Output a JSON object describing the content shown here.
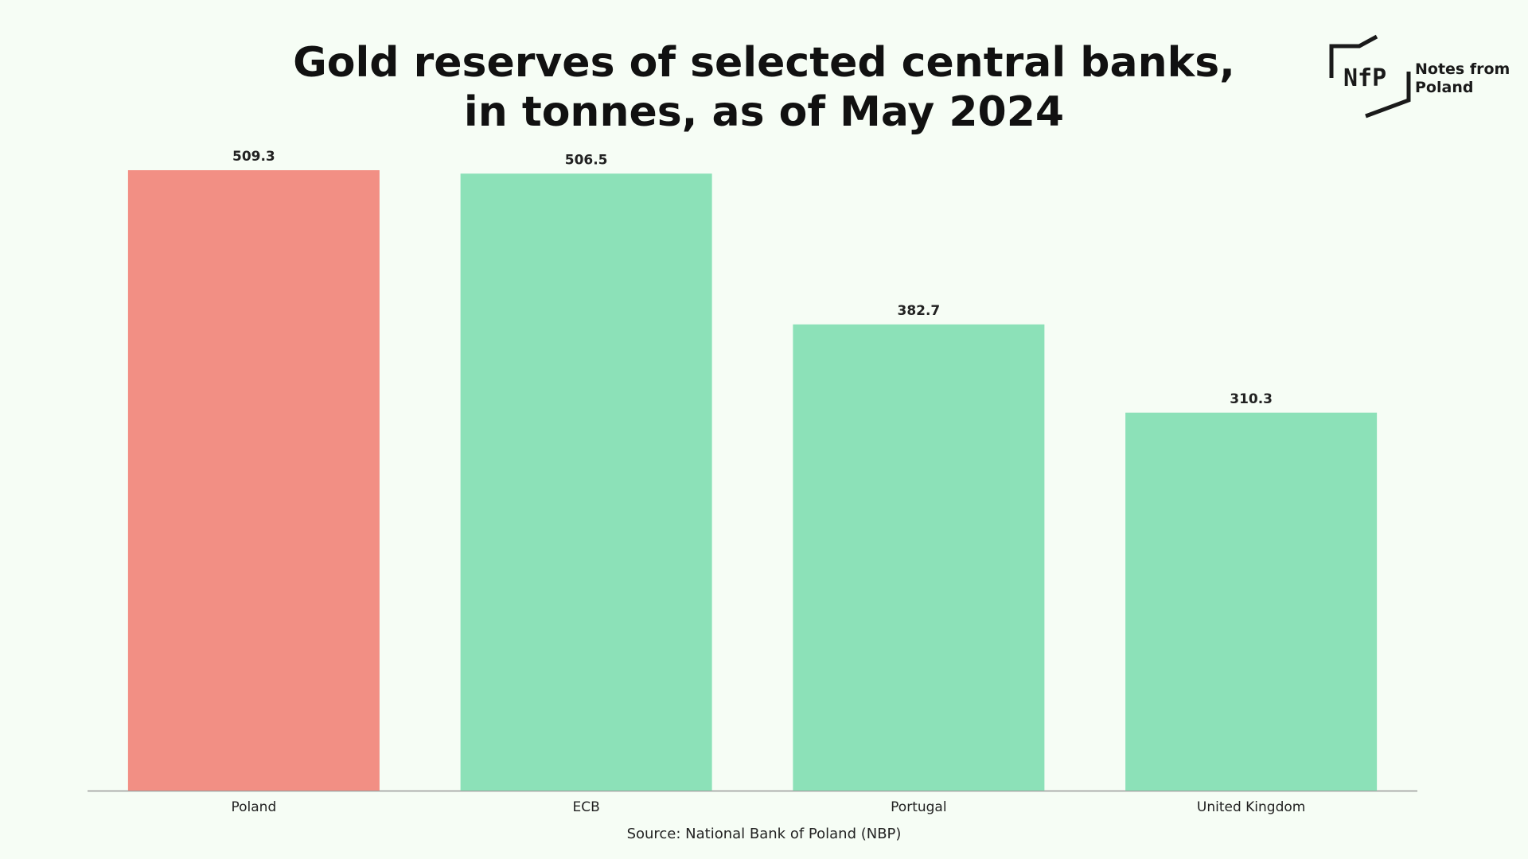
{
  "title": {
    "line1": "Gold reserves of selected central banks,",
    "line2": "in tonnes, as of May 2024"
  },
  "logo": {
    "mark": "NfP",
    "text_line1": "Notes from",
    "text_line2": "Poland"
  },
  "source": "Source: National Bank of Poland (NBP)",
  "colors": {
    "highlight": "#f28f84",
    "bar": "#8ce1b8",
    "background": "#f6fdf5",
    "axis": "#999999",
    "text": "#222222"
  },
  "chart_data": {
    "type": "bar",
    "categories": [
      "Poland",
      "ECB",
      "Portugal",
      "United Kingdom"
    ],
    "values": [
      509.3,
      506.5,
      382.7,
      310.3
    ],
    "value_labels": [
      "509.3",
      "506.5",
      "382.7",
      "310.3"
    ],
    "highlight_category": "Poland",
    "xlabel": "",
    "ylabel": "",
    "ylim": [
      0,
      509.3
    ],
    "grid": false,
    "legend": "none"
  }
}
